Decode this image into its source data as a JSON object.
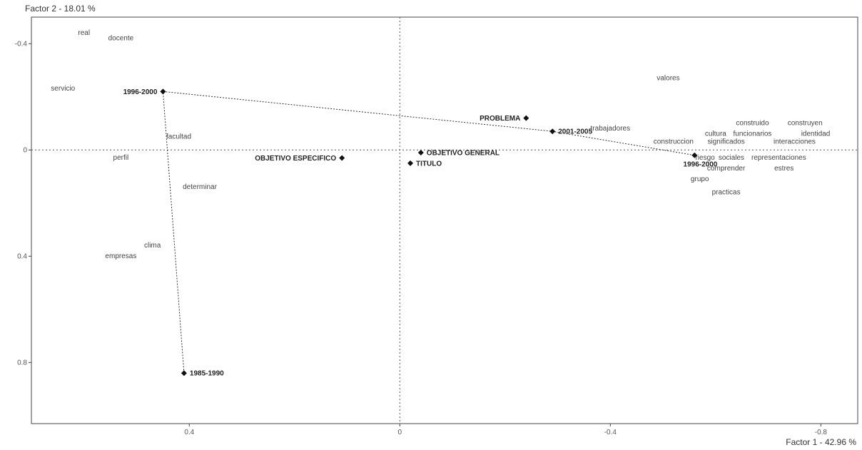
{
  "chart_data": {
    "type": "scatter",
    "title": "",
    "xlabel": "Factor 1  -  42.96 %",
    "ylabel": "Factor 2  -  18.01 %",
    "xlim": [
      -0.7,
      0.87
    ],
    "ylim": [
      -1.03,
      0.5
    ],
    "grid": false,
    "origin_lines": true,
    "x_ticks": [
      {
        "value": -0.4,
        "label": "0.4"
      },
      {
        "value": 0,
        "label": "0"
      },
      {
        "value": 0.4,
        "label": "-0.4"
      },
      {
        "value": 0.8,
        "label": "-0.8"
      }
    ],
    "y_ticks": [
      {
        "value": 0.4,
        "label": "-0.4"
      },
      {
        "value": 0,
        "label": "0"
      },
      {
        "value": -0.4,
        "label": "0.4"
      },
      {
        "value": -0.8,
        "label": "0.8"
      }
    ],
    "series": [
      {
        "kind": "words",
        "points": [
          {
            "label": "real",
            "x": -0.6,
            "y": 0.44
          },
          {
            "label": "docente",
            "x": -0.53,
            "y": 0.42
          },
          {
            "label": "servicio",
            "x": -0.64,
            "y": 0.23
          },
          {
            "label": "facultad",
            "x": -0.42,
            "y": 0.05
          },
          {
            "label": "perfil",
            "x": -0.53,
            "y": -0.03
          },
          {
            "label": "determinar",
            "x": -0.38,
            "y": -0.14
          },
          {
            "label": "clima",
            "x": -0.47,
            "y": -0.36
          },
          {
            "label": "empresas",
            "x": -0.53,
            "y": -0.4
          },
          {
            "label": "valores",
            "x": 0.51,
            "y": 0.27
          },
          {
            "label": "trabajadores",
            "x": 0.4,
            "y": 0.08
          },
          {
            "label": "construido",
            "x": 0.67,
            "y": 0.1
          },
          {
            "label": "construyen",
            "x": 0.77,
            "y": 0.1
          },
          {
            "label": "cultura",
            "x": 0.6,
            "y": 0.06
          },
          {
            "label": "funcionarios",
            "x": 0.67,
            "y": 0.06
          },
          {
            "label": "identidad",
            "x": 0.79,
            "y": 0.06
          },
          {
            "label": "construccion",
            "x": 0.52,
            "y": 0.03
          },
          {
            "label": "significados",
            "x": 0.62,
            "y": 0.03
          },
          {
            "label": "interacciones",
            "x": 0.75,
            "y": 0.03
          },
          {
            "label": "riesgo",
            "x": 0.58,
            "y": -0.03
          },
          {
            "label": "sociales",
            "x": 0.63,
            "y": -0.03
          },
          {
            "label": "representaciones",
            "x": 0.72,
            "y": -0.03
          },
          {
            "label": "comprender",
            "x": 0.62,
            "y": -0.07
          },
          {
            "label": "estres",
            "x": 0.73,
            "y": -0.07
          },
          {
            "label": "grupo",
            "x": 0.57,
            "y": -0.11
          },
          {
            "label": "practicas",
            "x": 0.62,
            "y": -0.16
          }
        ]
      },
      {
        "kind": "variables",
        "points": [
          {
            "label": "1996-2000",
            "x": -0.45,
            "y": 0.22,
            "label_side": "left"
          },
          {
            "label": "1985-1990",
            "x": -0.41,
            "y": -0.84,
            "label_side": "right"
          },
          {
            "label": "OBJETIVO ESPECIFICO",
            "x": -0.11,
            "y": -0.03,
            "label_side": "left"
          },
          {
            "label": "OBJETIVO GENERAL",
            "x": 0.04,
            "y": -0.01,
            "label_side": "right"
          },
          {
            "label": "TITULO",
            "x": 0.02,
            "y": -0.05,
            "label_side": "right"
          },
          {
            "label": "PROBLEMA",
            "x": 0.24,
            "y": 0.12,
            "label_side": "left"
          },
          {
            "label": "2001-2005",
            "x": 0.29,
            "y": 0.07,
            "label_side": "right"
          },
          {
            "label": "1996-2000",
            "x": 0.56,
            "y": -0.02,
            "label_side": "below-left"
          }
        ]
      }
    ],
    "trajectory": [
      "1985-1990",
      "1996-2000",
      "2001-2005",
      "1996-2000"
    ]
  }
}
